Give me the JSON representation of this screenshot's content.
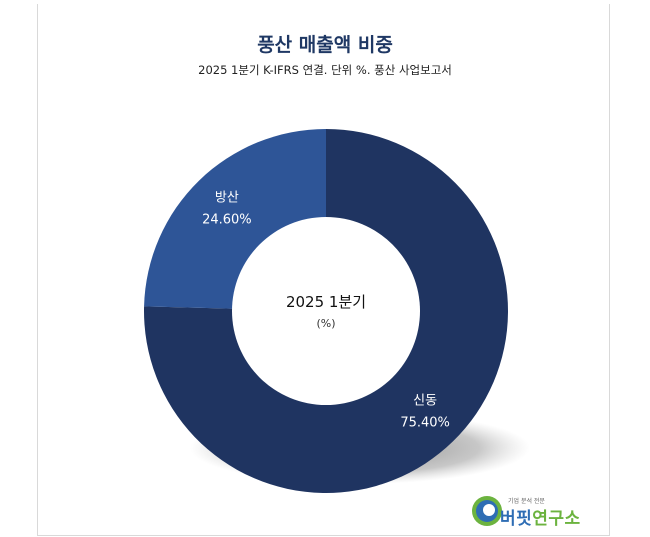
{
  "chart_data": {
    "type": "pie",
    "style": "donut",
    "title": "풍산 매출액 비중",
    "subtitle": "2025 1분기 K-IFRS 연결. 단위 %. 풍산 사업보고서",
    "center_label": "2025 1분기",
    "center_unit": "(%)",
    "slices": [
      {
        "name": "신동",
        "value": 75.4,
        "label": "75.40%",
        "color": "#1f3461"
      },
      {
        "name": "방산",
        "value": 24.6,
        "label": "24.60%",
        "color": "#2e5597"
      }
    ]
  },
  "logo": {
    "tagline": "기업 분석 전문",
    "name_part1": "버핏",
    "name_part2": "연구소"
  }
}
